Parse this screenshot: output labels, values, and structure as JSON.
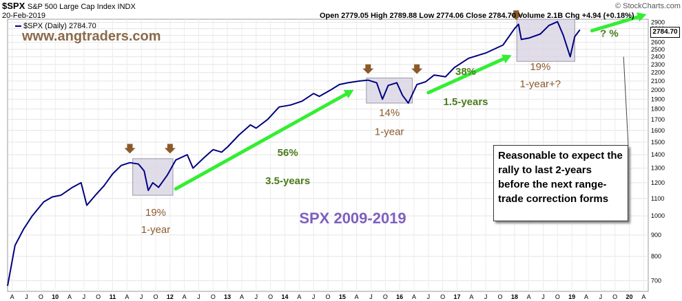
{
  "header": {
    "ticker": "$SPX",
    "description": "S&P 500 Large Cap Index INDX",
    "date": "20-Feb-2019",
    "ohlc": "Open 2779.05  High 2789.88  Low 2774.06  Close 2784.70  Volume 2.1B  Chg +4.94 (+0.18%)",
    "brand": "© StockCharts.com"
  },
  "legend": {
    "label": "$SPX (Daily) 2784.70",
    "color": "#000080"
  },
  "watermark": "www.angtraders.com",
  "last_value": "2784.70",
  "note": "Reasonable to expect the rally to last 2-years before the next range-trade correction forms",
  "colors": {
    "line": "#000080",
    "arrow": "#33ee33",
    "down_arrow": "#8b5a2b",
    "box": "#d8d4e4",
    "label_brown": "#8b5a2b",
    "label_green": "#4a7a1a",
    "title": "#7f5fbf"
  },
  "chart_data": {
    "type": "line",
    "title": "SPX  2009-2019",
    "series": [
      {
        "name": "$SPX (Daily)",
        "x": [
          2009.17,
          2009.3,
          2009.45,
          2009.6,
          2009.8,
          2009.95,
          2010.1,
          2010.3,
          2010.45,
          2010.55,
          2010.7,
          2010.85,
          2011.0,
          2011.15,
          2011.3,
          2011.45,
          2011.55,
          2011.62,
          2011.7,
          2011.8,
          2011.95,
          2012.1,
          2012.3,
          2012.4,
          2012.6,
          2012.75,
          2012.9,
          2013.0,
          2013.2,
          2013.4,
          2013.5,
          2013.7,
          2013.9,
          2014.1,
          2014.3,
          2014.5,
          2014.6,
          2014.8,
          2014.95,
          2015.1,
          2015.3,
          2015.45,
          2015.6,
          2015.7,
          2015.8,
          2015.95,
          2016.05,
          2016.15,
          2016.3,
          2016.45,
          2016.6,
          2016.8,
          2016.95,
          2017.2,
          2017.5,
          2017.8,
          2018.0,
          2018.07,
          2018.12,
          2018.25,
          2018.45,
          2018.6,
          2018.75,
          2018.85,
          2018.97,
          2019.05,
          2019.14
        ],
        "values": [
          680,
          850,
          930,
          1000,
          1080,
          1110,
          1120,
          1170,
          1200,
          1060,
          1120,
          1180,
          1260,
          1320,
          1340,
          1330,
          1280,
          1150,
          1200,
          1170,
          1250,
          1360,
          1400,
          1300,
          1380,
          1440,
          1420,
          1460,
          1560,
          1650,
          1620,
          1700,
          1820,
          1840,
          1880,
          1960,
          1930,
          2000,
          2060,
          2080,
          2100,
          2110,
          2080,
          1900,
          2050,
          2080,
          1940,
          1860,
          2060,
          2090,
          2170,
          2150,
          2260,
          2380,
          2450,
          2560,
          2800,
          2870,
          2640,
          2660,
          2720,
          2850,
          2910,
          2700,
          2400,
          2680,
          2784.7
        ]
      }
    ],
    "y_ticks": [
      700,
      800,
      900,
      1000,
      1100,
      1200,
      1300,
      1400,
      1500,
      1600,
      1700,
      1800,
      1900,
      2000,
      2100,
      2200,
      2300,
      2400,
      2500,
      2600,
      2700,
      2800,
      2900
    ],
    "y_scale": "log",
    "ylim": [
      660,
      2950
    ],
    "xlim": [
      2009.17,
      2020.33
    ],
    "x_ticks": [
      {
        "label": "A",
        "x": 2009.25
      },
      {
        "label": "J",
        "x": 2009.5
      },
      {
        "label": "O",
        "x": 2009.75
      },
      {
        "label": "10",
        "x": 2010.0
      },
      {
        "label": "A",
        "x": 2010.25
      },
      {
        "label": "J",
        "x": 2010.5
      },
      {
        "label": "O",
        "x": 2010.75
      },
      {
        "label": "11",
        "x": 2011.0
      },
      {
        "label": "A",
        "x": 2011.25
      },
      {
        "label": "J",
        "x": 2011.5
      },
      {
        "label": "O",
        "x": 2011.75
      },
      {
        "label": "12",
        "x": 2012.0
      },
      {
        "label": "A",
        "x": 2012.25
      },
      {
        "label": "J",
        "x": 2012.5
      },
      {
        "label": "O",
        "x": 2012.75
      },
      {
        "label": "13",
        "x": 2013.0
      },
      {
        "label": "A",
        "x": 2013.25
      },
      {
        "label": "J",
        "x": 2013.5
      },
      {
        "label": "O",
        "x": 2013.75
      },
      {
        "label": "14",
        "x": 2014.0
      },
      {
        "label": "A",
        "x": 2014.25
      },
      {
        "label": "J",
        "x": 2014.5
      },
      {
        "label": "O",
        "x": 2014.75
      },
      {
        "label": "15",
        "x": 2015.0
      },
      {
        "label": "A",
        "x": 2015.25
      },
      {
        "label": "J",
        "x": 2015.5
      },
      {
        "label": "O",
        "x": 2015.75
      },
      {
        "label": "16",
        "x": 2016.0
      },
      {
        "label": "A",
        "x": 2016.25
      },
      {
        "label": "J",
        "x": 2016.5
      },
      {
        "label": "O",
        "x": 2016.75
      },
      {
        "label": "17",
        "x": 2017.0
      },
      {
        "label": "A",
        "x": 2017.25
      },
      {
        "label": "J",
        "x": 2017.5
      },
      {
        "label": "O",
        "x": 2017.75
      },
      {
        "label": "18",
        "x": 2018.0
      },
      {
        "label": "A",
        "x": 2018.25
      },
      {
        "label": "J",
        "x": 2018.5
      },
      {
        "label": "O",
        "x": 2018.75
      },
      {
        "label": "19",
        "x": 2019.0
      },
      {
        "label": "A",
        "x": 2019.25
      },
      {
        "label": "J",
        "x": 2019.5
      },
      {
        "label": "O",
        "x": 2019.75
      },
      {
        "label": "20",
        "x": 2020.0
      },
      {
        "label": "A",
        "x": 2020.25
      }
    ],
    "grid": true,
    "range_boxes": [
      {
        "x0": 2011.35,
        "x1": 2012.05,
        "y0": 1120,
        "y1": 1370
      },
      {
        "x0": 2015.42,
        "x1": 2016.22,
        "y0": 1860,
        "y1": 2135
      },
      {
        "x0": 2018.04,
        "x1": 2019.05,
        "y0": 2340,
        "y1": 2950
      }
    ],
    "rally_arrows": [
      {
        "x0": 2012.1,
        "y0": 1160,
        "x1": 2015.2,
        "y1": 2000
      },
      {
        "x0": 2016.5,
        "y0": 1970,
        "x1": 2017.95,
        "y1": 2420
      },
      {
        "x0": 2019.35,
        "y0": 2770,
        "x1": 2020.3,
        "y1": 3030
      }
    ],
    "marker_arrows": [
      {
        "x": 2011.3,
        "y": 1420
      },
      {
        "x": 2012.0,
        "y": 1420
      },
      {
        "x": 2015.45,
        "y": 2200
      },
      {
        "x": 2016.3,
        "y": 2200
      },
      {
        "x": 2018.03,
        "y": 2960
      }
    ],
    "annotations": [
      {
        "text": "19%",
        "x": 2011.75,
        "y": 1000,
        "color": "label_brown"
      },
      {
        "text": "1-year",
        "x": 2011.75,
        "y": 910,
        "color": "label_brown"
      },
      {
        "text": "56%",
        "x": 2014.05,
        "y": 1390,
        "color": "label_green"
      },
      {
        "text": "3.5-years",
        "x": 2014.05,
        "y": 1190,
        "color": "label_green"
      },
      {
        "text": "14%",
        "x": 2015.82,
        "y": 1730,
        "color": "label_brown"
      },
      {
        "text": "1-year",
        "x": 2015.82,
        "y": 1560,
        "color": "label_brown"
      },
      {
        "text": "38%",
        "x": 2017.15,
        "y": 2170,
        "color": "label_green"
      },
      {
        "text": "1.5-years",
        "x": 2017.15,
        "y": 1840,
        "color": "label_green"
      },
      {
        "text": "19%",
        "x": 2018.45,
        "y": 2230,
        "color": "label_brown"
      },
      {
        "text": "1-year+?",
        "x": 2018.45,
        "y": 2030,
        "color": "label_brown"
      },
      {
        "text": "? %",
        "x": 2019.65,
        "y": 2680,
        "color": "label_green"
      }
    ],
    "note_anchor": {
      "x": 2019.9,
      "y": 2400
    }
  }
}
